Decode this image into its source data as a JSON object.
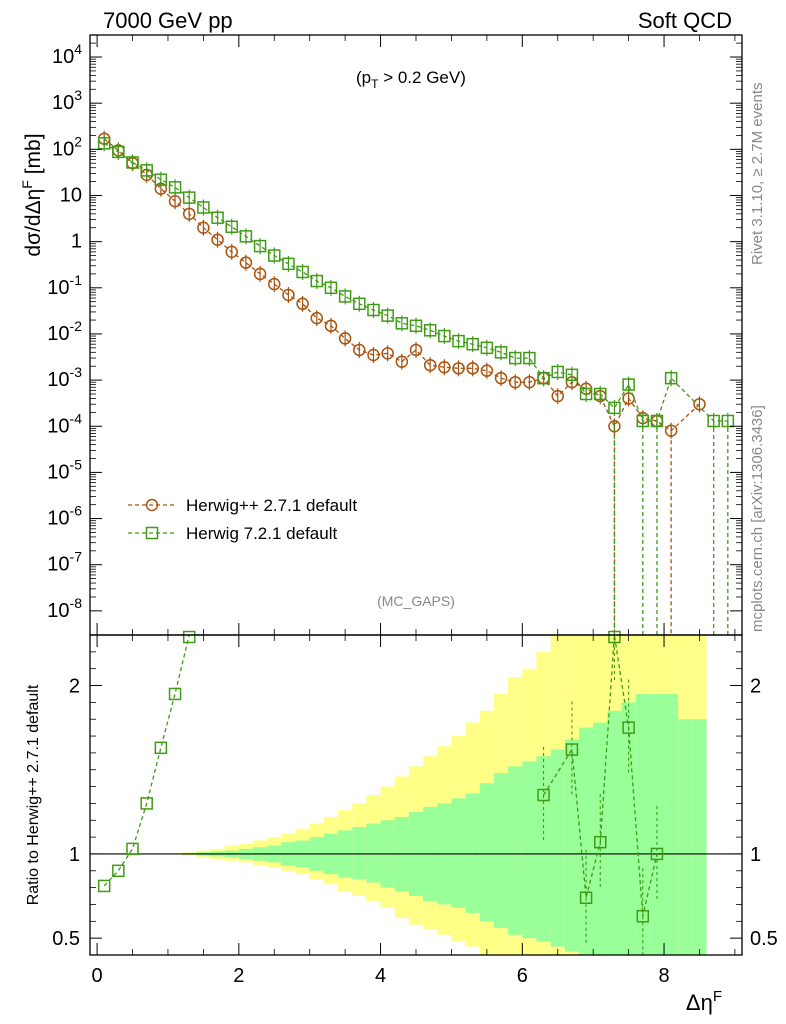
{
  "header": {
    "left": "7000 GeV pp",
    "right": "Soft QCD"
  },
  "side_labels": {
    "rivet": "Rivet 3.1.10, ≥ 2.7M events",
    "mcplots": "mcplots.cern.ch [arXiv:1306.3436]"
  },
  "colors": {
    "herwigpp": "#a9530f",
    "herwig7": "#3f9b16",
    "band_inner": "#99ff99",
    "band_outer": "#ffff88"
  },
  "chart_data": [
    {
      "type": "scatter",
      "yscale": "log",
      "cut_label": "(p_T > 0.2 GeV)",
      "watermark": "(MC_GAPS)",
      "ylabel": "dσ/dΔη^F [mb]",
      "xlim": [
        -0.1,
        9.1
      ],
      "ylim": [
        3e-09,
        30000
      ],
      "ytick_labels": [
        "10^{-8}",
        "10^{-7}",
        "10^{-6}",
        "10^{-5}",
        "10^{-4}",
        "10^{-3}",
        "10^{-2}",
        "10^{-1}",
        "1",
        "10",
        "10^{2}",
        "10^{3}",
        "10^{4}"
      ],
      "legend_position": "lower-left",
      "series": [
        {
          "name": "Herwig++ 2.7.1 default",
          "marker": "circle",
          "x": [
            0.1,
            0.3,
            0.5,
            0.7,
            0.9,
            1.1,
            1.3,
            1.5,
            1.7,
            1.9,
            2.1,
            2.3,
            2.5,
            2.7,
            2.9,
            3.1,
            3.3,
            3.5,
            3.7,
            3.9,
            4.1,
            4.3,
            4.5,
            4.7,
            4.9,
            5.1,
            5.3,
            5.5,
            5.7,
            5.9,
            6.1,
            6.3,
            6.5,
            6.7,
            6.9,
            7.1,
            7.3,
            7.5,
            7.7,
            7.9,
            8.1,
            8.5
          ],
          "y": [
            170,
            95,
            50,
            28,
            14,
            7.5,
            4,
            2,
            1.1,
            0.6,
            0.35,
            0.2,
            0.12,
            0.07,
            0.045,
            0.022,
            0.015,
            0.008,
            0.0045,
            0.0035,
            0.0038,
            0.0025,
            0.0045,
            0.0021,
            0.0019,
            0.0018,
            0.0018,
            0.0016,
            0.0011,
            0.0009,
            0.0009,
            0.0011,
            0.00045,
            0.0009,
            0.00065,
            0.00045,
            0.0001,
            0.0004,
            0.00015,
            0.00013,
            8e-05,
            0.0003
          ]
        },
        {
          "name": "Herwig 7.2.1 default",
          "marker": "square",
          "x": [
            0.1,
            0.3,
            0.5,
            0.7,
            0.9,
            1.1,
            1.3,
            1.5,
            1.7,
            1.9,
            2.1,
            2.3,
            2.5,
            2.7,
            2.9,
            3.1,
            3.3,
            3.5,
            3.7,
            3.9,
            4.1,
            4.3,
            4.5,
            4.7,
            4.9,
            5.1,
            5.3,
            5.5,
            5.7,
            5.9,
            6.1,
            6.3,
            6.5,
            6.7,
            6.9,
            7.1,
            7.3,
            7.5,
            7.7,
            7.9,
            8.1,
            8.7,
            8.9
          ],
          "y": [
            135,
            88,
            52,
            35,
            22,
            15,
            9,
            5.5,
            3.3,
            2.1,
            1.3,
            0.8,
            0.5,
            0.33,
            0.22,
            0.14,
            0.1,
            0.065,
            0.045,
            0.033,
            0.025,
            0.017,
            0.015,
            0.012,
            0.009,
            0.007,
            0.006,
            0.005,
            0.004,
            0.003,
            0.003,
            0.0011,
            0.0015,
            0.0013,
            0.0005,
            0.0005,
            0.00025,
            0.0008,
            0.00013,
            0.00013,
            0.0011,
            0.00013,
            0.00013
          ]
        }
      ]
    },
    {
      "type": "scatter",
      "ylabel": "Ratio to Herwig++ 2.7.1 default",
      "xlabel": "Δη^F",
      "xlim": [
        -0.1,
        9.1
      ],
      "ylim": [
        0.4,
        2.3
      ],
      "xtick_labels": [
        "0",
        "2",
        "4",
        "6",
        "8"
      ],
      "ytick_labels": [
        "0.5",
        "1",
        "2"
      ],
      "reference_line": 1,
      "uncertainty_bands": {
        "x_edges": [
          0,
          0.2,
          0.4,
          0.6,
          0.8,
          1.0,
          1.2,
          1.4,
          1.6,
          1.8,
          2.0,
          2.2,
          2.4,
          2.6,
          2.8,
          3.0,
          3.2,
          3.4,
          3.6,
          3.8,
          4.0,
          4.2,
          4.4,
          4.6,
          4.8,
          5.0,
          5.2,
          5.4,
          5.6,
          5.8,
          6.0,
          6.2,
          6.4,
          6.6,
          6.8,
          7.0,
          7.2,
          7.4,
          7.6,
          7.8,
          8.0,
          8.2,
          8.4,
          8.6
        ],
        "inner_low": [
          1,
          1,
          1,
          1,
          1,
          1,
          0.995,
          0.99,
          0.985,
          0.98,
          0.97,
          0.96,
          0.95,
          0.93,
          0.92,
          0.9,
          0.88,
          0.86,
          0.85,
          0.83,
          0.8,
          0.78,
          0.75,
          0.72,
          0.7,
          0.68,
          0.65,
          0.6,
          0.56,
          0.52,
          0.5,
          0.48,
          0.45,
          0.42,
          0.35,
          0.35,
          0.3,
          0.3,
          0.3,
          0.3,
          0.3,
          0.3,
          0.3
        ],
        "inner_high": [
          1,
          1,
          1,
          1,
          1,
          1,
          1.005,
          1.01,
          1.015,
          1.02,
          1.03,
          1.04,
          1.05,
          1.07,
          1.08,
          1.1,
          1.12,
          1.14,
          1.16,
          1.18,
          1.2,
          1.22,
          1.25,
          1.28,
          1.3,
          1.33,
          1.36,
          1.42,
          1.48,
          1.52,
          1.55,
          1.58,
          1.62,
          1.68,
          1.75,
          1.78,
          1.85,
          1.9,
          1.95,
          1.95,
          1.95,
          1.8,
          1.8
        ],
        "outer_low": [
          1,
          1,
          1,
          1,
          1,
          1,
          0.99,
          0.98,
          0.97,
          0.96,
          0.95,
          0.93,
          0.92,
          0.9,
          0.88,
          0.85,
          0.82,
          0.78,
          0.75,
          0.72,
          0.68,
          0.62,
          0.58,
          0.55,
          0.52,
          0.48,
          0.45,
          0.4,
          0.38,
          0.35,
          0.3,
          0.3,
          0.3,
          0.3,
          0.3,
          0.3,
          0.3,
          0.3,
          0.3,
          0.3,
          0.3,
          0.3,
          0.3
        ],
        "outer_high": [
          1,
          1,
          1,
          1,
          1,
          1,
          1.01,
          1.02,
          1.03,
          1.05,
          1.06,
          1.08,
          1.1,
          1.12,
          1.15,
          1.18,
          1.22,
          1.26,
          1.3,
          1.35,
          1.4,
          1.46,
          1.52,
          1.58,
          1.64,
          1.7,
          1.78,
          1.85,
          1.95,
          2.05,
          2.1,
          2.2,
          2.3,
          2.3,
          2.3,
          2.3,
          2.3,
          2.3,
          2.3,
          2.3,
          2.3,
          2.3,
          2.3
        ]
      },
      "series": [
        {
          "name": "Herwig 7.2.1 default",
          "marker": "square",
          "x": [
            0.1,
            0.3,
            0.5,
            0.7,
            0.9,
            1.1,
            1.3,
            6.3,
            6.7,
            6.9,
            7.1,
            7.3,
            7.5,
            7.7,
            7.9
          ],
          "y": [
            0.81,
            0.9,
            1.03,
            1.3,
            1.63,
            1.95,
            2.3,
            1.35,
            1.62,
            0.74,
            1.07,
            2.3,
            1.75,
            0.63,
            1.0
          ]
        }
      ]
    }
  ]
}
